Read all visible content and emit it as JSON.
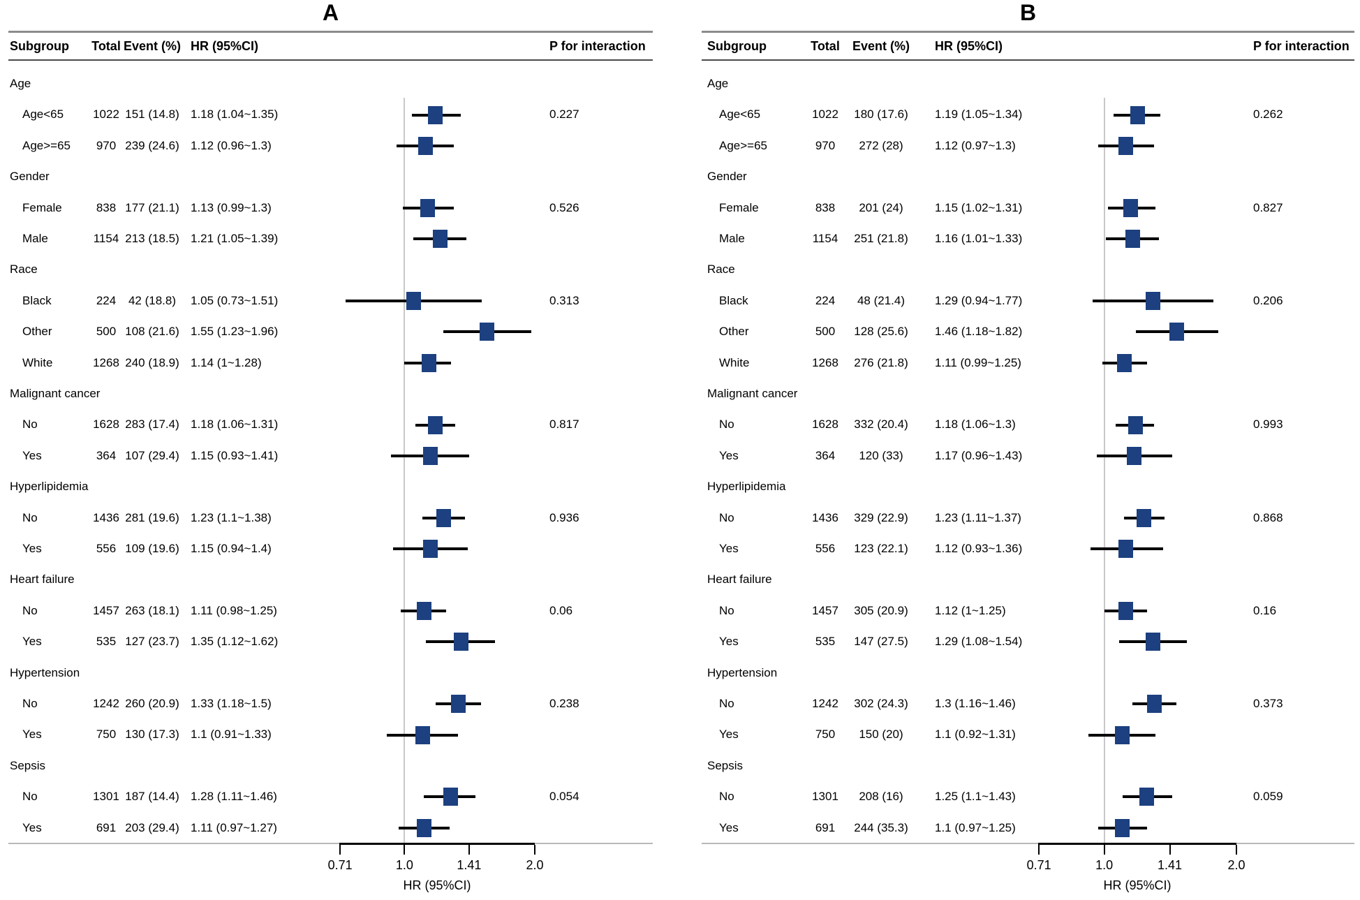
{
  "colors": {
    "marker": "#1c4080",
    "ci_line": "#000000",
    "ref_line": "#c8c8c8",
    "rule_top": "#8c8c8c",
    "rule_header": "#4a4a4a",
    "rule_bottom": "#b8b8b8",
    "text": "#000000",
    "background": "#ffffff"
  },
  "chart_data": [
    {
      "type": "forest",
      "panel_label": "A",
      "columns": {
        "subgroup": "Subgroup",
        "total": "Total",
        "event": "Event (%)",
        "hr": "HR (95%CI)",
        "p": "P for interaction"
      },
      "axis": {
        "scale": "log2",
        "range": [
          0.71,
          2.0
        ],
        "ticks": [
          0.71,
          1.0,
          1.41,
          2.0
        ],
        "tick_labels": [
          "0.71",
          "1.0",
          "1.41",
          "2.0"
        ],
        "ref_line": 1.0,
        "label": "HR (95%CI)"
      },
      "groups": [
        {
          "name": "Age",
          "rows": [
            {
              "label": "Age<65",
              "total": "1022",
              "event": "151 (14.8)",
              "hr_text": "1.18 (1.04~1.35)",
              "hr": 1.18,
              "lo": 1.04,
              "hi": 1.35,
              "p": "0.227"
            },
            {
              "label": "Age>=65",
              "total": "970",
              "event": "239 (24.6)",
              "hr_text": "1.12 (0.96~1.3)",
              "hr": 1.12,
              "lo": 0.96,
              "hi": 1.3
            }
          ]
        },
        {
          "name": "Gender",
          "rows": [
            {
              "label": "Female",
              "total": "838",
              "event": "177 (21.1)",
              "hr_text": "1.13 (0.99~1.3)",
              "hr": 1.13,
              "lo": 0.99,
              "hi": 1.3,
              "p": "0.526"
            },
            {
              "label": "Male",
              "total": "1154",
              "event": "213 (18.5)",
              "hr_text": "1.21 (1.05~1.39)",
              "hr": 1.21,
              "lo": 1.05,
              "hi": 1.39
            }
          ]
        },
        {
          "name": "Race",
          "rows": [
            {
              "label": "Black",
              "total": "224",
              "event": "42 (18.8)",
              "hr_text": "1.05 (0.73~1.51)",
              "hr": 1.05,
              "lo": 0.73,
              "hi": 1.51,
              "p": "0.313"
            },
            {
              "label": "Other",
              "total": "500",
              "event": "108 (21.6)",
              "hr_text": "1.55 (1.23~1.96)",
              "hr": 1.55,
              "lo": 1.23,
              "hi": 1.96
            },
            {
              "label": "White",
              "total": "1268",
              "event": "240 (18.9)",
              "hr_text": "1.14 (1~1.28)",
              "hr": 1.14,
              "lo": 1.0,
              "hi": 1.28
            }
          ]
        },
        {
          "name": "Malignant cancer",
          "rows": [
            {
              "label": "No",
              "total": "1628",
              "event": "283 (17.4)",
              "hr_text": "1.18 (1.06~1.31)",
              "hr": 1.18,
              "lo": 1.06,
              "hi": 1.31,
              "p": "0.817"
            },
            {
              "label": "Yes",
              "total": "364",
              "event": "107 (29.4)",
              "hr_text": "1.15 (0.93~1.41)",
              "hr": 1.15,
              "lo": 0.93,
              "hi": 1.41
            }
          ]
        },
        {
          "name": "Hyperlipidemia",
          "rows": [
            {
              "label": "No",
              "total": "1436",
              "event": "281 (19.6)",
              "hr_text": "1.23 (1.1~1.38)",
              "hr": 1.23,
              "lo": 1.1,
              "hi": 1.38,
              "p": "0.936"
            },
            {
              "label": "Yes",
              "total": "556",
              "event": "109 (19.6)",
              "hr_text": "1.15 (0.94~1.4)",
              "hr": 1.15,
              "lo": 0.94,
              "hi": 1.4
            }
          ]
        },
        {
          "name": "Heart failure",
          "rows": [
            {
              "label": "No",
              "total": "1457",
              "event": "263 (18.1)",
              "hr_text": "1.11 (0.98~1.25)",
              "hr": 1.11,
              "lo": 0.98,
              "hi": 1.25,
              "p": "0.06"
            },
            {
              "label": "Yes",
              "total": "535",
              "event": "127 (23.7)",
              "hr_text": "1.35 (1.12~1.62)",
              "hr": 1.35,
              "lo": 1.12,
              "hi": 1.62
            }
          ]
        },
        {
          "name": "Hypertension",
          "rows": [
            {
              "label": "No",
              "total": "1242",
              "event": "260 (20.9)",
              "hr_text": "1.33 (1.18~1.5)",
              "hr": 1.33,
              "lo": 1.18,
              "hi": 1.5,
              "p": "0.238"
            },
            {
              "label": "Yes",
              "total": "750",
              "event": "130 (17.3)",
              "hr_text": "1.1 (0.91~1.33)",
              "hr": 1.1,
              "lo": 0.91,
              "hi": 1.33
            }
          ]
        },
        {
          "name": "Sepsis",
          "rows": [
            {
              "label": "No",
              "total": "1301",
              "event": "187 (14.4)",
              "hr_text": "1.28 (1.11~1.46)",
              "hr": 1.28,
              "lo": 1.11,
              "hi": 1.46,
              "p": "0.054"
            },
            {
              "label": "Yes",
              "total": "691",
              "event": "203 (29.4)",
              "hr_text": "1.11 (0.97~1.27)",
              "hr": 1.11,
              "lo": 0.97,
              "hi": 1.27
            }
          ]
        }
      ]
    },
    {
      "type": "forest",
      "panel_label": "B",
      "columns": {
        "subgroup": "Subgroup",
        "total": "Total",
        "event": "Event (%)",
        "hr": "HR (95%CI)",
        "p": "P for interaction"
      },
      "axis": {
        "scale": "log2",
        "range": [
          0.71,
          2.0
        ],
        "ticks": [
          0.71,
          1.0,
          1.41,
          2.0
        ],
        "tick_labels": [
          "0.71",
          "1.0",
          "1.41",
          "2.0"
        ],
        "ref_line": 1.0,
        "label": "HR (95%CI)"
      },
      "groups": [
        {
          "name": "Age",
          "rows": [
            {
              "label": "Age<65",
              "total": "1022",
              "event": "180 (17.6)",
              "hr_text": "1.19 (1.05~1.34)",
              "hr": 1.19,
              "lo": 1.05,
              "hi": 1.34,
              "p": "0.262"
            },
            {
              "label": "Age>=65",
              "total": "970",
              "event": "272 (28)",
              "hr_text": "1.12 (0.97~1.3)",
              "hr": 1.12,
              "lo": 0.97,
              "hi": 1.3
            }
          ]
        },
        {
          "name": "Gender",
          "rows": [
            {
              "label": "Female",
              "total": "838",
              "event": "201 (24)",
              "hr_text": "1.15 (1.02~1.31)",
              "hr": 1.15,
              "lo": 1.02,
              "hi": 1.31,
              "p": "0.827"
            },
            {
              "label": "Male",
              "total": "1154",
              "event": "251 (21.8)",
              "hr_text": "1.16 (1.01~1.33)",
              "hr": 1.16,
              "lo": 1.01,
              "hi": 1.33
            }
          ]
        },
        {
          "name": "Race",
          "rows": [
            {
              "label": "Black",
              "total": "224",
              "event": "48 (21.4)",
              "hr_text": "1.29 (0.94~1.77)",
              "hr": 1.29,
              "lo": 0.94,
              "hi": 1.77,
              "p": "0.206"
            },
            {
              "label": "Other",
              "total": "500",
              "event": "128 (25.6)",
              "hr_text": "1.46 (1.18~1.82)",
              "hr": 1.46,
              "lo": 1.18,
              "hi": 1.82
            },
            {
              "label": "White",
              "total": "1268",
              "event": "276 (21.8)",
              "hr_text": "1.11 (0.99~1.25)",
              "hr": 1.11,
              "lo": 0.99,
              "hi": 1.25
            }
          ]
        },
        {
          "name": "Malignant cancer",
          "rows": [
            {
              "label": "No",
              "total": "1628",
              "event": "332 (20.4)",
              "hr_text": "1.18 (1.06~1.3)",
              "hr": 1.18,
              "lo": 1.06,
              "hi": 1.3,
              "p": "0.993"
            },
            {
              "label": "Yes",
              "total": "364",
              "event": "120 (33)",
              "hr_text": "1.17 (0.96~1.43)",
              "hr": 1.17,
              "lo": 0.96,
              "hi": 1.43
            }
          ]
        },
        {
          "name": "Hyperlipidemia",
          "rows": [
            {
              "label": "No",
              "total": "1436",
              "event": "329 (22.9)",
              "hr_text": "1.23 (1.11~1.37)",
              "hr": 1.23,
              "lo": 1.11,
              "hi": 1.37,
              "p": "0.868"
            },
            {
              "label": "Yes",
              "total": "556",
              "event": "123 (22.1)",
              "hr_text": "1.12 (0.93~1.36)",
              "hr": 1.12,
              "lo": 0.93,
              "hi": 1.36
            }
          ]
        },
        {
          "name": "Heart failure",
          "rows": [
            {
              "label": "No",
              "total": "1457",
              "event": "305 (20.9)",
              "hr_text": "1.12 (1~1.25)",
              "hr": 1.12,
              "lo": 1.0,
              "hi": 1.25,
              "p": "0.16"
            },
            {
              "label": "Yes",
              "total": "535",
              "event": "147 (27.5)",
              "hr_text": "1.29 (1.08~1.54)",
              "hr": 1.29,
              "lo": 1.08,
              "hi": 1.54
            }
          ]
        },
        {
          "name": "Hypertension",
          "rows": [
            {
              "label": "No",
              "total": "1242",
              "event": "302 (24.3)",
              "hr_text": "1.3 (1.16~1.46)",
              "hr": 1.3,
              "lo": 1.16,
              "hi": 1.46,
              "p": "0.373"
            },
            {
              "label": "Yes",
              "total": "750",
              "event": "150 (20)",
              "hr_text": "1.1 (0.92~1.31)",
              "hr": 1.1,
              "lo": 0.92,
              "hi": 1.31
            }
          ]
        },
        {
          "name": "Sepsis",
          "rows": [
            {
              "label": "No",
              "total": "1301",
              "event": "208 (16)",
              "hr_text": "1.25 (1.1~1.43)",
              "hr": 1.25,
              "lo": 1.1,
              "hi": 1.43,
              "p": "0.059"
            },
            {
              "label": "Yes",
              "total": "691",
              "event": "244 (35.3)",
              "hr_text": "1.1 (0.97~1.25)",
              "hr": 1.1,
              "lo": 0.97,
              "hi": 1.25
            }
          ]
        }
      ]
    }
  ]
}
